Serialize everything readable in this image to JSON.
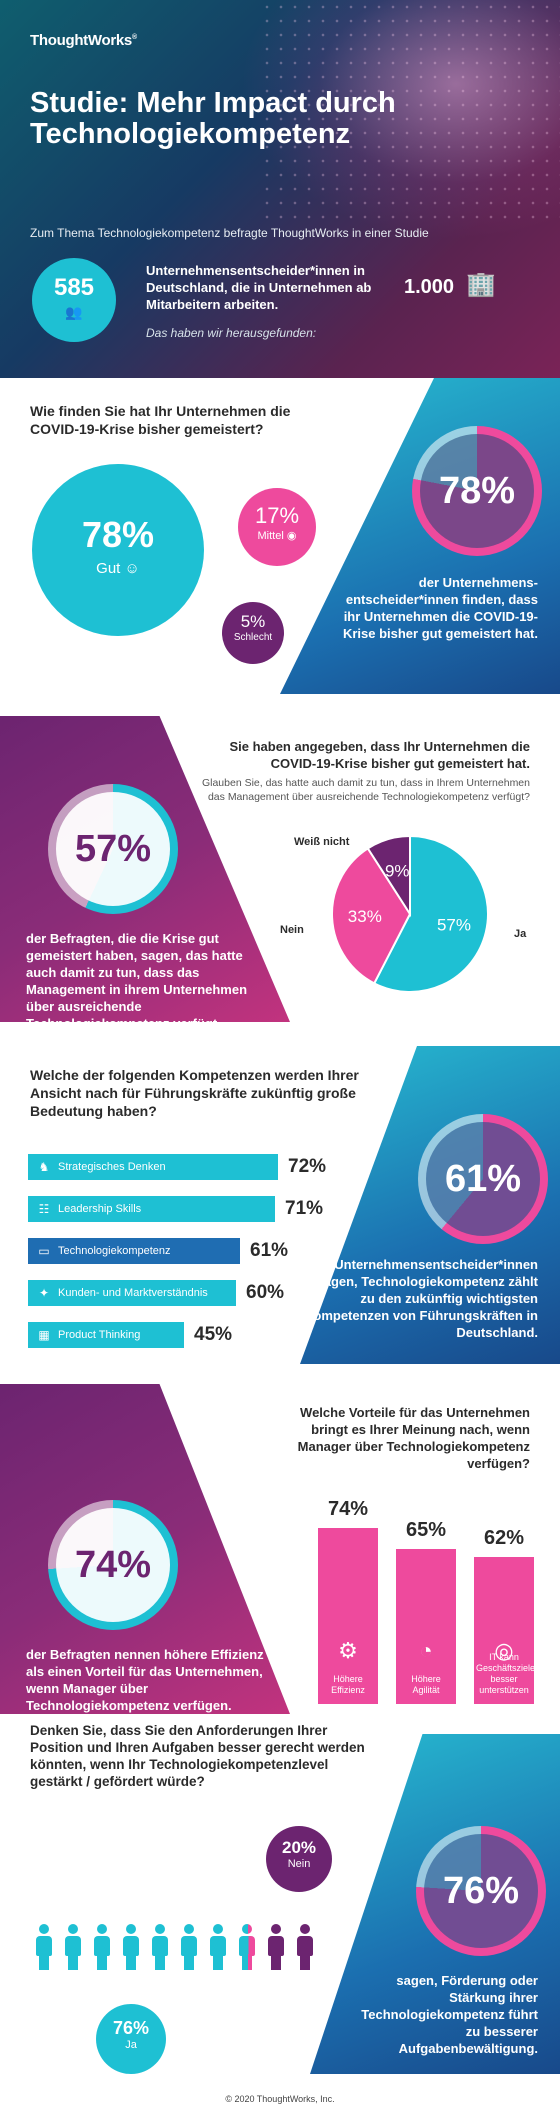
{
  "header": {
    "logo": "ThoughtWorks",
    "logo_mark": "®",
    "title": "Studie: Mehr Impact durch Technologiekompetenz",
    "intro": "Zum Thema Technologiekompetenz befragte ThoughtWorks in einer Studie",
    "count": "585",
    "count_icon": "people-icon",
    "main_text": "Unternehmensentscheider*innen in Deutschland, die in Unternehmen ab",
    "main_text2": "Mitarbeitern arbeiten.",
    "employees": "1.000",
    "building_icon": "building-icon",
    "note": "Das haben wir herausgefunden:"
  },
  "section1": {
    "question": "Wie finden Sie hat Ihr Unternehmen die COVID-19-Krise bisher gemeistert?",
    "good_pct": "78%",
    "good_label": "Gut",
    "mid_pct": "17%",
    "mid_label": "Mittel",
    "bad_pct": "5%",
    "bad_label": "Schlecht",
    "ring_pct": "78%",
    "ring_value": 78,
    "ring_caption": "der Unternehmens-entscheider*innen finden, dass ihr Unternehmen die COVID-19-Krise bisher gut gemeistert hat."
  },
  "section2": {
    "question": "Sie haben angegeben, dass Ihr Unternehmen die COVID-19-Krise bisher gut gemeistert hat.",
    "sub": "Glauben Sie, das hatte auch damit zu tun, dass in Ihrem Unternehmen das Management über ausreichende Technologiekompetenz verfügt?",
    "ring_pct": "57%",
    "ring_value": 57,
    "ring_caption": "der Befragten, die die Krise gut gemeistert haben, sagen, das hatte auch damit zu tun, dass das Management in ihrem Unternehmen über ausreichende Technologiekompetenz verfügt.",
    "chart_data": {
      "type": "pie",
      "slices": [
        {
          "label": "Ja",
          "value": 57,
          "text": "57%",
          "color": "#1ec0d3"
        },
        {
          "label": "Nein",
          "value": 33,
          "text": "33%",
          "color": "#ee4a9d"
        },
        {
          "label": "Weiß nicht",
          "value": 9,
          "text": "9%",
          "color": "#6c2470"
        }
      ]
    }
  },
  "section3": {
    "question": "Welche der folgenden Kompetenzen werden Ihrer Ansicht nach für Führungskräfte zukünftig große Bedeutung haben?",
    "ring_pct": "61%",
    "ring_value": 61,
    "ring_caption": "der Unternehmensentscheider*innen sagen, Technologiekompetenz zählt zu den zukünftig wichtigsten Kompetenzen von Führungskräften in Deutschland.",
    "chart_data": {
      "type": "bar",
      "categories": [
        "Strategisches Denken",
        "Leadership Skills",
        "Technologiekompetenz",
        "Kunden- und Marktverständnis",
        "Product Thinking"
      ],
      "values": [
        72,
        71,
        61,
        60,
        45
      ],
      "labels": [
        "72%",
        "71%",
        "61%",
        "60%",
        "45%"
      ],
      "icons": [
        "chess-knight-icon",
        "team-icon",
        "laptop-icon",
        "handshake-icon",
        "grid-icon"
      ],
      "highlight": "Technologiekompetenz"
    }
  },
  "section4": {
    "question": "Welche Vorteile für das Unternehmen bringt es Ihrer Meinung nach, wenn Manager über Technologiekompetenz verfügen?",
    "ring_pct": "74%",
    "ring_value": 74,
    "ring_caption": "der Befragten nennen höhere Effizienz als einen Vorteil für das Unternehmen, wenn Manager über Technologiekompetenz verfügen.",
    "chart_data": {
      "type": "bar",
      "categories": [
        "Höhere Effizienz",
        "Höhere Agilität",
        "IT kann Geschäftsziele besser unterstützen"
      ],
      "values": [
        74,
        65,
        62
      ],
      "labels": [
        "74%",
        "65%",
        "62%"
      ],
      "icons": [
        "gears-icon",
        "speed-icon",
        "target-icon"
      ]
    }
  },
  "section5": {
    "question": "Denken Sie, dass Sie den Anforderungen Ihrer Position und Ihren Aufgaben besser gerecht werden könnten, wenn Ihr Technologiekompetenzlevel gestärkt / gefördert würde?",
    "no_pct": "20%",
    "no_label": "Nein",
    "yes_pct": "76%",
    "yes_label": "Ja",
    "ring_pct": "76%",
    "ring_value": 76,
    "ring_caption": "sagen, Förderung oder Stärkung ihrer Technologiekompetenz führt zu besserer Aufgabenbewältigung.",
    "people_yes": 7.6,
    "people_total": 10
  },
  "footer": "© 2020 ThoughtWorks, Inc.",
  "colors": {
    "cyan": "#1ec0d3",
    "pink": "#ee4a9d",
    "purple": "#6c2470",
    "blue": "#1f6db2"
  }
}
